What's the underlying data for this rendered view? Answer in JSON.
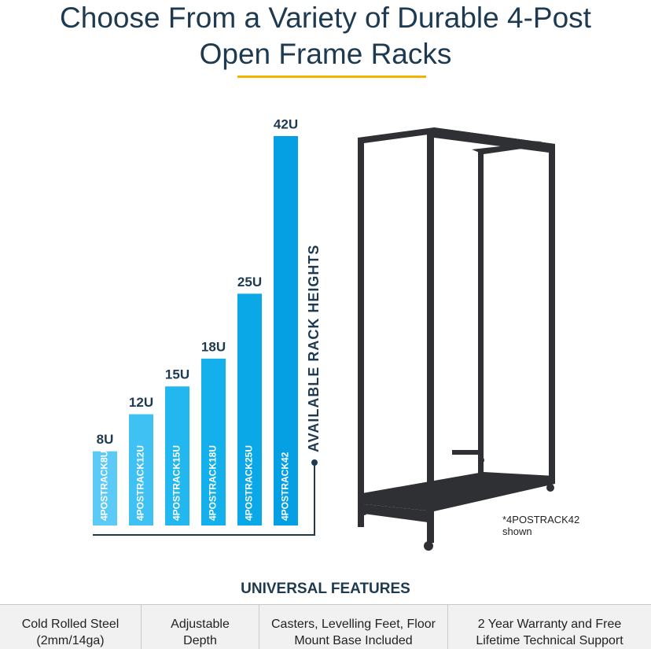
{
  "chart_data": {
    "type": "bar",
    "title": "Choose From a Variety of Durable 4-Post Open Frame Racks",
    "y_label": "AVAILABLE RACK HEIGHTS",
    "categories": [
      "4POSTRACK8U",
      "4POSTRACK12U",
      "4POSTRACK15U",
      "4POSTRACK18U",
      "4POSTRACK25U",
      "4POSTRACK42"
    ],
    "values": [
      8,
      12,
      15,
      18,
      25,
      42
    ],
    "value_labels": [
      "8U",
      "12U",
      "15U",
      "18U",
      "25U",
      "42U"
    ],
    "colors": [
      "#5ccaf6",
      "#3fc1f3",
      "#22b8ef",
      "#14b0eb",
      "#0aa8e7",
      "#04a0e3"
    ]
  },
  "note": "*4POSTRACK42 shown",
  "features": {
    "heading": "UNIVERSAL FEATURES",
    "items": [
      "Cold Rolled Steel (2mm/14ga)",
      "Adjustable Depth",
      "Casters, Levelling Feet, Floor Mount Base Included",
      "2 Year Warranty and Free Lifetime Technical Support"
    ]
  }
}
